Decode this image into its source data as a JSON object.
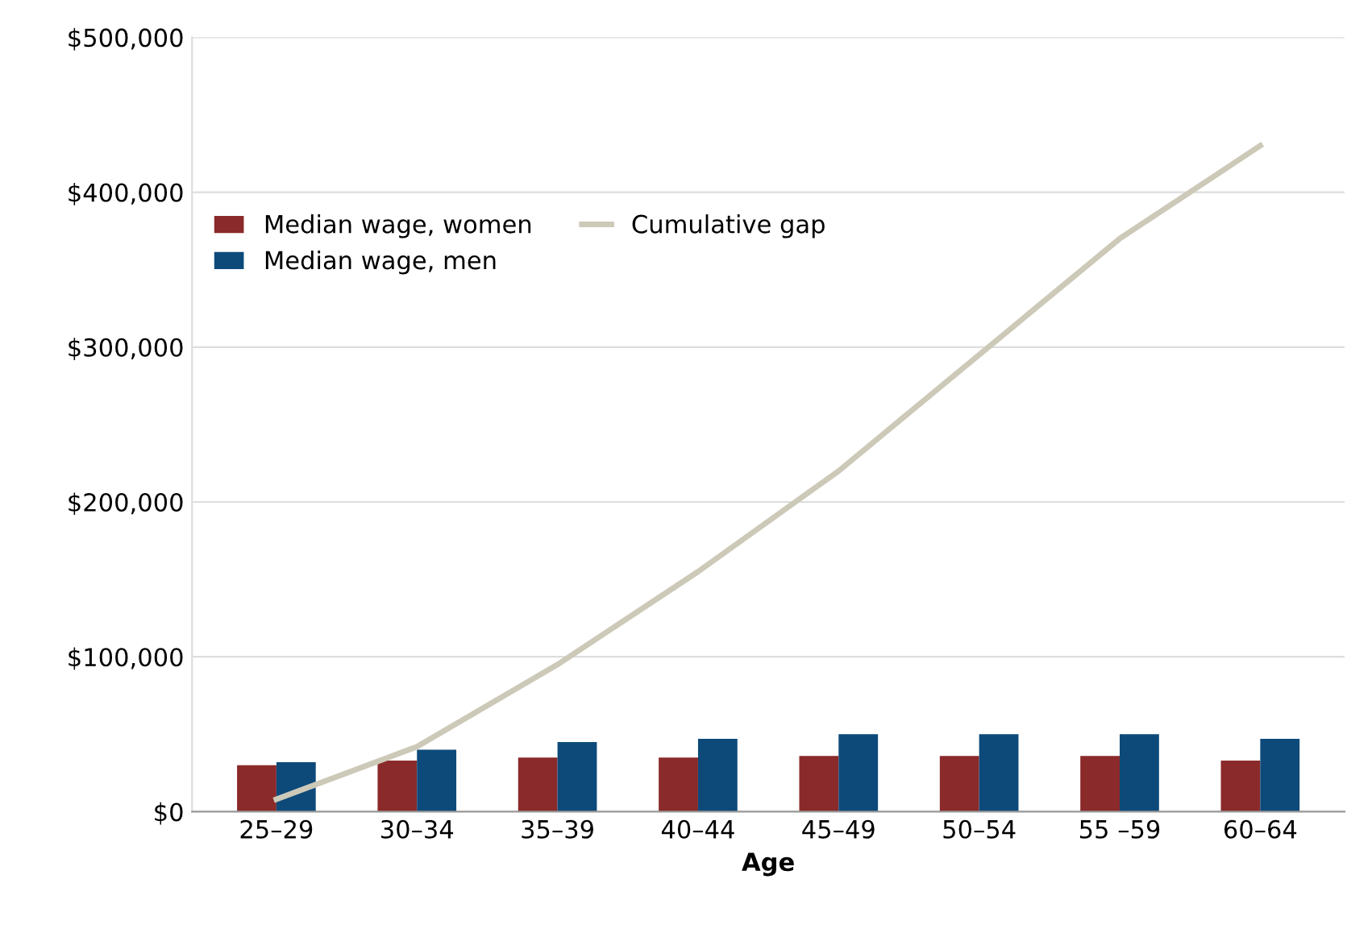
{
  "chart_data": {
    "type": "bar",
    "xlabel": "Age",
    "categories": [
      "25–29",
      "30–34",
      "35–39",
      "40–44",
      "45–49",
      "50–54",
      "55 –59",
      "60–64"
    ],
    "series": [
      {
        "name": "Median wage, women",
        "color": "#8b2a2a",
        "values": [
          30000,
          33000,
          35000,
          35000,
          36000,
          36000,
          36000,
          33000
        ]
      },
      {
        "name": "Median wage, men",
        "color": "#0d4a7a",
        "values": [
          32000,
          40000,
          45000,
          47000,
          50000,
          50000,
          50000,
          47000
        ]
      },
      {
        "name": "Cumulative gap",
        "type": "line",
        "color": "#cdc9b8",
        "values": [
          8000,
          42000,
          95000,
          155000,
          220000,
          295000,
          370000,
          430000
        ]
      }
    ],
    "ylim": [
      0,
      500000
    ],
    "yticks": [
      {
        "value": 0,
        "label": "$0"
      },
      {
        "value": 100000,
        "label": "$100,000"
      },
      {
        "value": 200000,
        "label": "$200,000"
      },
      {
        "value": 300000,
        "label": "$300,000"
      },
      {
        "value": 400000,
        "label": "$400,000"
      },
      {
        "value": 500000,
        "label": "$500,000"
      }
    ],
    "grid": "y",
    "legend": "top left"
  }
}
